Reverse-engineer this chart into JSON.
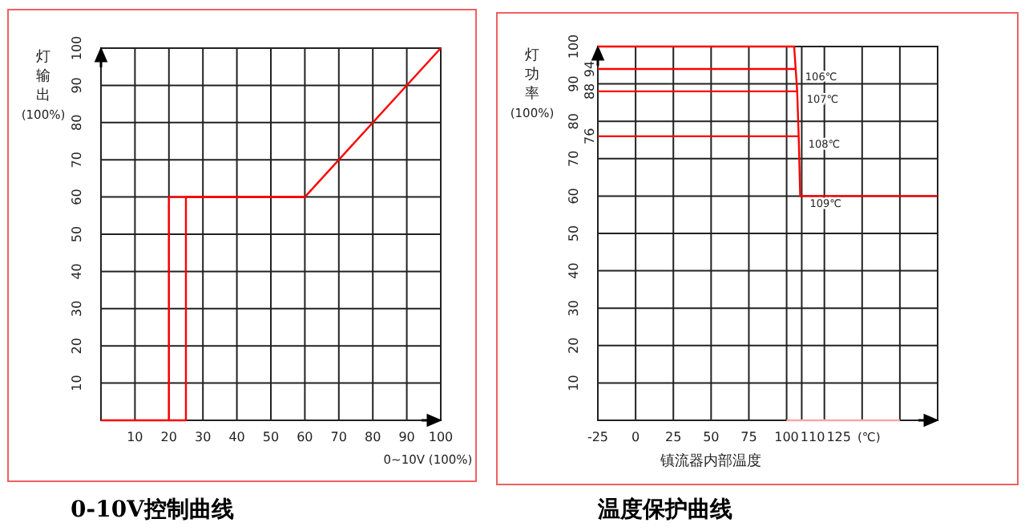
{
  "chart_data": [
    {
      "type": "line",
      "title": "0-10V控制曲线",
      "xlabel": "0~10V (100%)",
      "ylabel": "灯输出(100%)",
      "xlim": [
        0,
        100
      ],
      "ylim": [
        0,
        100
      ],
      "xticks": [
        10,
        20,
        30,
        40,
        50,
        60,
        70,
        80,
        90,
        100
      ],
      "yticks": [
        10,
        20,
        30,
        40,
        50,
        60,
        70,
        80,
        90,
        100
      ],
      "grid": true,
      "series": [
        {
          "color": "#ff0000",
          "x": [
            0,
            25,
            25,
            60,
            100
          ],
          "values": [
            0,
            0,
            60,
            60,
            100
          ]
        },
        {
          "color": "#ff0000",
          "x": [
            60,
            20,
            20
          ],
          "values": [
            60,
            60,
            0
          ]
        }
      ]
    },
    {
      "type": "line",
      "title": "温度保护曲线",
      "xlabel": "镇流器内部温度",
      "ylabel": "灯功率(100%)",
      "xlim": [
        -25,
        200
      ],
      "ylim": [
        0,
        100
      ],
      "xticks": [
        -25,
        0,
        25,
        50,
        75,
        100,
        110,
        125,
        {
          "value": 150,
          "label": null
        },
        {
          "value": 175,
          "label": null
        },
        {
          "value": 200,
          "label": null
        }
      ],
      "yticks": [
        10,
        20,
        30,
        40,
        50,
        60,
        70,
        80,
        90,
        100
      ],
      "grid": true,
      "series": [
        {
          "color": "#ff0000",
          "x": [
            -25,
            105,
            106,
            107,
            108,
            109,
            200
          ],
          "values": [
            100,
            100,
            94,
            88,
            76,
            60,
            60
          ]
        },
        {
          "color": "#ff0000",
          "x": [
            -25,
            106
          ],
          "values": [
            94,
            94
          ]
        },
        {
          "color": "#ff0000",
          "x": [
            -25,
            107
          ],
          "values": [
            88,
            88
          ]
        },
        {
          "color": "#ff0000",
          "x": [
            -25,
            108
          ],
          "values": [
            76,
            76
          ]
        },
        {
          "color": "#f8a8a8",
          "x": [
            100,
            175
          ],
          "values": [
            0,
            0
          ]
        }
      ],
      "annotations": [
        {
          "text": "94",
          "x": -25,
          "y": 94
        },
        {
          "text": "88",
          "x": -25,
          "y": 88
        },
        {
          "text": "76",
          "x": -25,
          "y": 76
        },
        {
          "text": "106℃",
          "x": 106,
          "y": 94
        },
        {
          "text": "107℃",
          "x": 107,
          "y": 88
        },
        {
          "text": "108℃",
          "x": 108,
          "y": 76
        },
        {
          "text": "109℃",
          "x": 109,
          "y": 60
        },
        "(℃)"
      ]
    }
  ]
}
